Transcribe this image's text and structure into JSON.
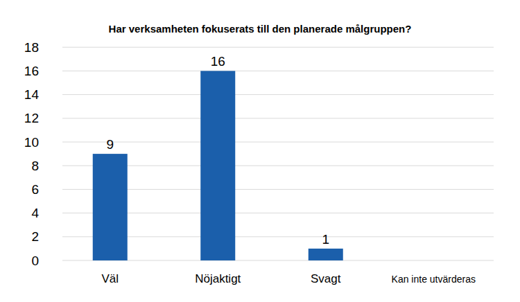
{
  "chart_data": {
    "type": "bar",
    "title": "Har verksamheten fokuserats till den planerade målgruppen?",
    "categories": [
      "Väl",
      "Nöjaktigt",
      "Svagt",
      "Kan inte utvärderas"
    ],
    "values": [
      9,
      16,
      1,
      null
    ],
    "color": "#1b5fab",
    "ylim": [
      0,
      18
    ],
    "yticks": [
      0,
      2,
      4,
      6,
      8,
      10,
      12,
      14,
      16,
      18
    ],
    "grid": true,
    "data_labels": true
  }
}
